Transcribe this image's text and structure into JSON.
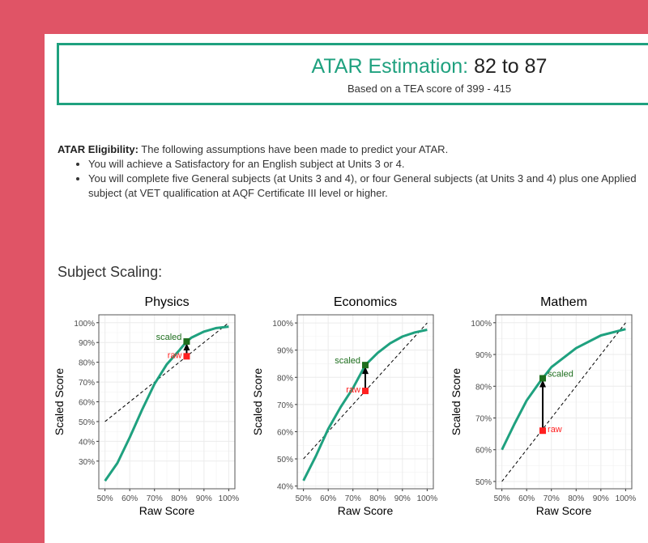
{
  "header": {
    "label": "ATAR Estimation:",
    "range": "82 to 87",
    "subtitle": "Based on a TEA score of 399 - 415"
  },
  "eligibility": {
    "heading": "ATAR Eligibility:",
    "intro": "The following assumptions have been made to predict your ATAR.",
    "items": [
      {
        "line1": "You will achieve a Satisfactory for an English subject at Units 3 or 4.",
        "line2": ""
      },
      {
        "line1": "You will complete five General subjects (at Units 3 and 4), or four General subjects (at Units 3 and 4) plus one Applied subject (at",
        "line2": "VET qualification at AQF Certificate III level or higher."
      }
    ]
  },
  "section_title": "Subject Scaling:",
  "colors": {
    "curve": "#1FA17F",
    "scaled": "#1E6E1E",
    "raw": "#FF2020",
    "brand": "#E05466"
  },
  "chart_data": [
    {
      "type": "line",
      "title": "Physics",
      "xlabel": "Raw Score",
      "ylabel": "Scaled Score",
      "xlim": [
        47.5,
        102.5
      ],
      "ylim": [
        16,
        104
      ],
      "xticks": [
        50,
        60,
        70,
        80,
        90,
        100
      ],
      "yticks": [
        30,
        40,
        50,
        60,
        70,
        80,
        90,
        100
      ],
      "tick_suffix": "%",
      "grid": true,
      "curve": {
        "x": [
          50,
          55,
          60,
          65,
          70,
          75,
          80,
          83,
          85,
          90,
          95,
          100
        ],
        "y": [
          20,
          29,
          42,
          56,
          69,
          79,
          86,
          90.5,
          92.5,
          95.5,
          97.3,
          98
        ]
      },
      "reference_line": {
        "x": [
          50,
          100
        ],
        "y": [
          50,
          100
        ]
      },
      "raw": {
        "x": 83,
        "y": 83,
        "label": "raw"
      },
      "scaled": {
        "x": 83,
        "y": 90.5,
        "label": "scaled"
      }
    },
    {
      "type": "line",
      "title": "Economics",
      "xlabel": "Raw Score",
      "ylabel": "Scaled Score",
      "xlim": [
        47.5,
        102.5
      ],
      "ylim": [
        39,
        103
      ],
      "xticks": [
        50,
        60,
        70,
        80,
        90,
        100
      ],
      "yticks": [
        40,
        50,
        60,
        70,
        80,
        90,
        100
      ],
      "tick_suffix": "%",
      "grid": true,
      "curve": {
        "x": [
          50,
          55,
          60,
          65,
          70,
          75,
          80,
          85,
          90,
          95,
          100
        ],
        "y": [
          42,
          51,
          61,
          69,
          76,
          84.5,
          89,
          92.5,
          95,
          96.5,
          97.5
        ]
      },
      "reference_line": {
        "x": [
          50,
          100
        ],
        "y": [
          50,
          100
        ]
      },
      "raw": {
        "x": 75,
        "y": 75,
        "label": "raw"
      },
      "scaled": {
        "x": 75,
        "y": 84.5,
        "label": "scaled"
      }
    },
    {
      "type": "line",
      "title": "Mathem",
      "xlabel": "Raw Score",
      "ylabel": "Scaled Score",
      "xlim": [
        47.5,
        102.5
      ],
      "ylim": [
        47.7,
        102.5
      ],
      "xticks": [
        50,
        60,
        70,
        80,
        90,
        100
      ],
      "yticks": [
        50,
        60,
        70,
        80,
        90,
        100
      ],
      "tick_suffix": "%",
      "grid": true,
      "curve": {
        "x": [
          50,
          55,
          60,
          65,
          66.5,
          70,
          75,
          80,
          90,
          100
        ],
        "y": [
          60,
          68,
          75.5,
          81,
          82.5,
          86,
          89,
          92,
          96,
          98
        ]
      },
      "reference_line": {
        "x": [
          50,
          100
        ],
        "y": [
          50,
          100
        ]
      },
      "raw": {
        "x": 66.5,
        "y": 66,
        "label": "raw"
      },
      "scaled": {
        "x": 66.5,
        "y": 82.5,
        "label": "scaled"
      }
    }
  ]
}
